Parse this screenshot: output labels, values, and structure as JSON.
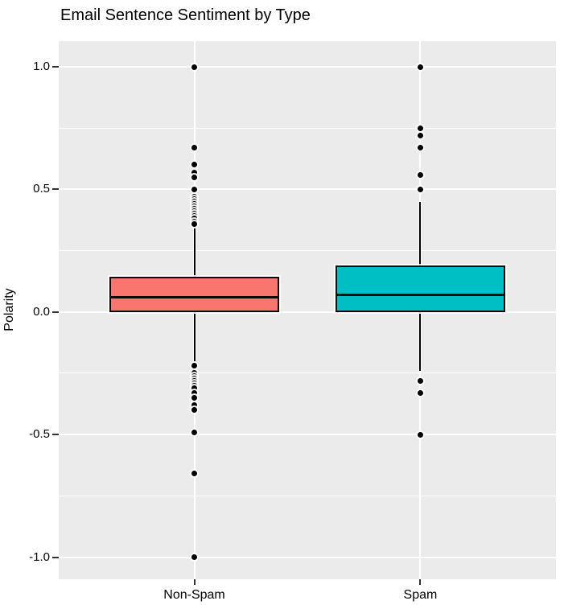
{
  "chart_data": {
    "type": "boxplot",
    "title": "Email Sentence Sentiment by Type",
    "xlabel": "",
    "ylabel": "Polarity",
    "categories": [
      "Non-Spam",
      "Spam"
    ],
    "ylim": [
      -1.09,
      1.105
    ],
    "y_ticks": [
      1.0,
      0.5,
      0.0,
      -0.5,
      -1.0
    ],
    "y_tick_labels": [
      "1.0",
      "0.5",
      "0.0",
      "-0.5",
      "-1.0"
    ],
    "y_minor_ticks": [
      0.75,
      0.25,
      -0.25,
      -0.75
    ],
    "grid": true,
    "legend": "none",
    "panel_bg": "#EBEBEB",
    "grid_color": "#FFFFFF",
    "series": [
      {
        "name": "Non-Spam",
        "color": "#F8766D",
        "q1": 0.0,
        "median": 0.06,
        "q3": 0.145,
        "whisker_low": -0.2,
        "whisker_high": 0.35,
        "outliers": [
          1.0,
          0.67,
          0.6,
          0.57,
          0.55,
          0.5,
          0.47,
          0.46,
          0.45,
          0.44,
          0.43,
          0.42,
          0.41,
          0.4,
          0.39,
          0.38,
          0.37,
          0.36,
          -0.22,
          -0.25,
          -0.26,
          -0.27,
          -0.28,
          -0.29,
          -0.3,
          -0.31,
          -0.33,
          -0.35,
          -0.38,
          -0.4,
          -0.49,
          -0.66,
          -1.0
        ]
      },
      {
        "name": "Spam",
        "color": "#00BFC4",
        "q1": 0.0,
        "median": 0.07,
        "q3": 0.19,
        "whisker_low": -0.24,
        "whisker_high": 0.45,
        "outliers": [
          1.0,
          0.75,
          0.72,
          0.67,
          0.56,
          0.5,
          -0.28,
          -0.33,
          -0.5
        ]
      }
    ]
  }
}
